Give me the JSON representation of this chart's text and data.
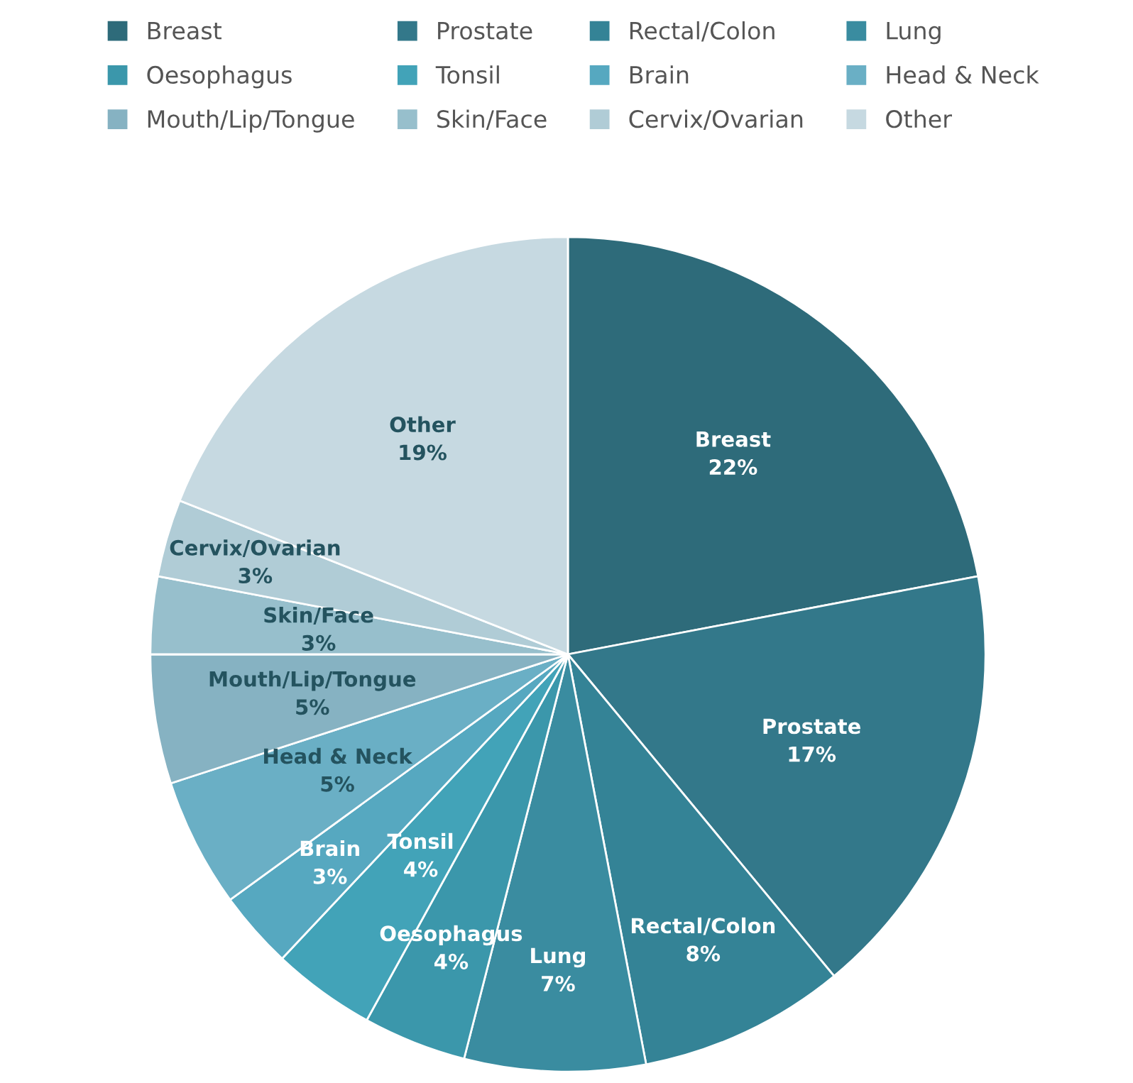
{
  "chart_data": {
    "type": "pie",
    "categories": [
      "Breast",
      "Prostate",
      "Rectal/Colon",
      "Lung",
      "Oesophagus",
      "Tonsil",
      "Brain",
      "Head & Neck",
      "Mouth/Lip/Tongue",
      "Skin/Face",
      "Cervix/Ovarian",
      "Other"
    ],
    "values": [
      22,
      17,
      8,
      7,
      4,
      4,
      3,
      5,
      5,
      3,
      3,
      19
    ],
    "value_labels": [
      "22%",
      "17%",
      "8%",
      "7%",
      "4%",
      "4%",
      "3%",
      "5%",
      "5%",
      "3%",
      "3%",
      "19%"
    ],
    "colors": [
      "#2e6b7a",
      "#33788a",
      "#348396",
      "#3a8ca0",
      "#3b97ab",
      "#42a3b8",
      "#56a8c0",
      "#6aafc5",
      "#86b2c2",
      "#97bfcc",
      "#b0ccd6",
      "#c6d9e1"
    ],
    "legend": "top"
  }
}
